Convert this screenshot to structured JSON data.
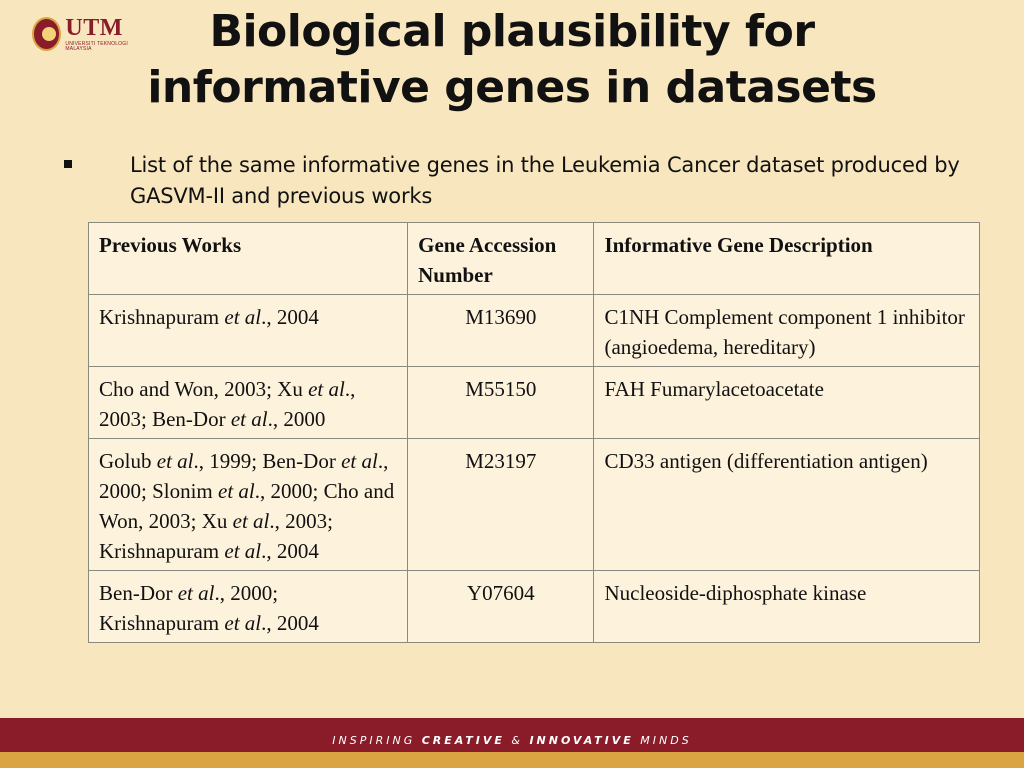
{
  "logo": {
    "name": "UTM",
    "subtitle": "UNIVERSITI TEKNOLOGI MALAYSIA"
  },
  "title": {
    "line1": "Biological plausibility for",
    "line2": "informative genes in datasets"
  },
  "bullet": {
    "text": "List of the same informative genes in the Leukemia Cancer dataset produced by GASVM-II and previous works"
  },
  "table": {
    "headers": [
      "Previous Works",
      "Gene Accession Number",
      "Informative Gene Description"
    ],
    "rows": [
      {
        "works_parts": [
          "Krishnapuram ",
          "et al",
          "., 2004"
        ],
        "accession": "M13690",
        "description": "C1NH Complement component 1 inhibitor (angioedema, hereditary)"
      },
      {
        "works_parts": [
          "Cho and Won, 2003; Xu ",
          "et al",
          "., 2003; Ben-Dor ",
          "et al",
          "., 2000"
        ],
        "accession": "M55150",
        "description": "FAH Fumarylacetoacetate"
      },
      {
        "works_parts": [
          "Golub ",
          "et al",
          "., 1999; Ben-Dor ",
          "et al",
          "., 2000; Slonim ",
          "et al",
          "., 2000; Cho and Won, 2003; Xu ",
          "et al",
          "., 2003; Krishnapuram ",
          "et al",
          "., 2004"
        ],
        "accession": "M23197",
        "description": "CD33 antigen (differentiation antigen)"
      },
      {
        "works_parts": [
          "Ben-Dor ",
          "et al",
          "., 2000; Krishnapuram ",
          "et al",
          "., 2004"
        ],
        "accession": "Y07604",
        "description": "Nucleoside-diphosphate kinase"
      }
    ]
  },
  "footer": {
    "part1": "INSPIRING ",
    "part2": "CREATIVE",
    "part3": " & ",
    "part4": "INNOVATIVE",
    "part5": " MINDS"
  },
  "colors": {
    "background": "#f8e6be",
    "brand_maroon": "#8a1c2a",
    "brand_gold": "#d9a441"
  }
}
